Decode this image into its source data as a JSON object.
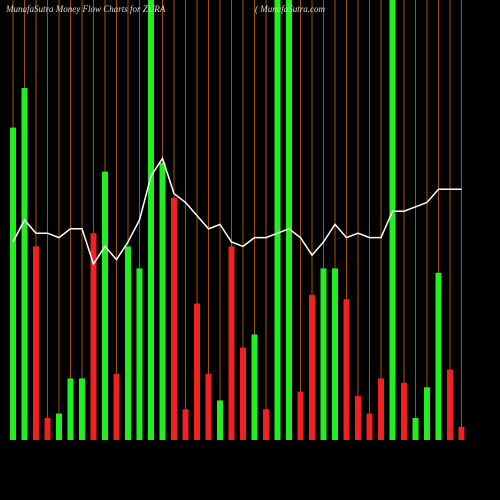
{
  "chart_data": {
    "type": "bar",
    "title": "MunafaSutra  Money Flow  Charts for ZURA",
    "subtitle": "( MunafaSutra.com",
    "ylim": [
      0,
      100
    ],
    "grid": true,
    "grid_color": "#a0520a",
    "values": [
      71,
      80,
      44,
      5,
      6,
      14,
      14,
      47,
      61,
      15,
      44,
      39,
      100,
      63,
      55,
      7,
      31,
      15,
      9,
      44,
      21,
      24,
      7,
      100,
      100,
      11,
      33,
      39,
      39,
      32,
      10,
      6,
      14,
      100,
      13,
      5,
      12,
      38,
      16,
      3
    ],
    "colors": [
      "#22ee22",
      "#22ee22",
      "#ee2222",
      "#ee2222",
      "#22ee22",
      "#22ee22",
      "#22ee22",
      "#ee2222",
      "#22ee22",
      "#ee2222",
      "#22ee22",
      "#22ee22",
      "#22ee22",
      "#22ee22",
      "#ee2222",
      "#ee2222",
      "#ee2222",
      "#ee2222",
      "#22ee22",
      "#ee2222",
      "#ee2222",
      "#22ee22",
      "#ee2222",
      "#22ee22",
      "#22ee22",
      "#ee2222",
      "#ee2222",
      "#22ee22",
      "#22ee22",
      "#ee2222",
      "#ee2222",
      "#ee2222",
      "#ee2222",
      "#22ee22",
      "#ee2222",
      "#22ee22",
      "#22ee22",
      "#22ee22",
      "#ee2222",
      "#ee2222"
    ],
    "line": {
      "color": "#ffffff",
      "values": [
        45,
        50,
        47,
        47,
        46,
        48,
        48,
        40,
        44,
        41,
        45,
        50,
        60,
        64,
        56,
        54,
        51,
        48,
        49,
        45,
        44,
        46,
        46,
        47,
        48,
        46,
        42,
        45,
        49,
        46,
        47,
        46,
        46,
        52,
        52,
        53,
        54,
        57,
        57,
        57
      ]
    }
  }
}
